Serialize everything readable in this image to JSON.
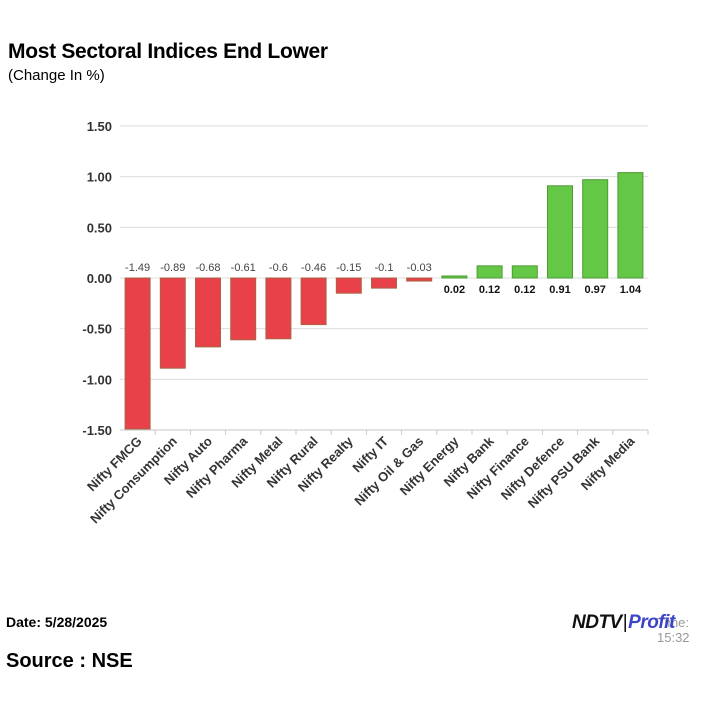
{
  "page": {
    "title": "Most Sectoral Indices End Lower",
    "subtitle": "(Change In %)",
    "date_label": "Date: 5/28/2025",
    "source_label": "Source : NSE",
    "logo": {
      "left": "NDTV",
      "separator": "|",
      "right": "Profit"
    },
    "time_label": "Time: 15:32"
  },
  "colors": {
    "negative": "#e8414a",
    "negative_edge": "#a86446",
    "positive": "#64c846",
    "positive_edge": "#4e9a36",
    "grid": "#dcdcdc",
    "axis": "#c8c8c8",
    "text": "#333333"
  },
  "chart_data": {
    "type": "bar",
    "categories": [
      "Nifty FMCG",
      "Nifty Consumption",
      "Nifty Auto",
      "Nifty Pharma",
      "Nifty Metal",
      "Nifty Rural",
      "Nifty Realty",
      "Nifty IT",
      "Nifty Oil & Gas",
      "Nifty Energy",
      "Nifty Bank",
      "Nifty Finance",
      "Nifty Defence",
      "Nifty PSU Bank",
      "Nifty Media"
    ],
    "values": [
      -1.49,
      -0.89,
      -0.68,
      -0.61,
      -0.6,
      -0.46,
      -0.15,
      -0.1,
      -0.03,
      0.02,
      0.12,
      0.12,
      0.91,
      0.97,
      1.04
    ],
    "value_labels": [
      "-1.49",
      "-0.89",
      "-0.68",
      "-0.61",
      "-0.6",
      "-0.46",
      "-0.15",
      "-0.1",
      "-0.03",
      "0.02",
      "0.12",
      "0.12",
      "0.91",
      "0.97",
      "1.04"
    ],
    "y_ticks": [
      "1.50",
      "1.00",
      "0.50",
      "0.00",
      "-0.50",
      "-1.00",
      "-1.50"
    ],
    "y_tick_values": [
      1.5,
      1.0,
      0.5,
      0.0,
      -0.5,
      -1.0,
      -1.5
    ],
    "ylim": [
      -1.5,
      1.5
    ],
    "title": "Most Sectoral Indices End Lower",
    "subtitle": "(Change In %)",
    "xlabel": "",
    "ylabel": "",
    "grid": true,
    "legend": "none"
  }
}
